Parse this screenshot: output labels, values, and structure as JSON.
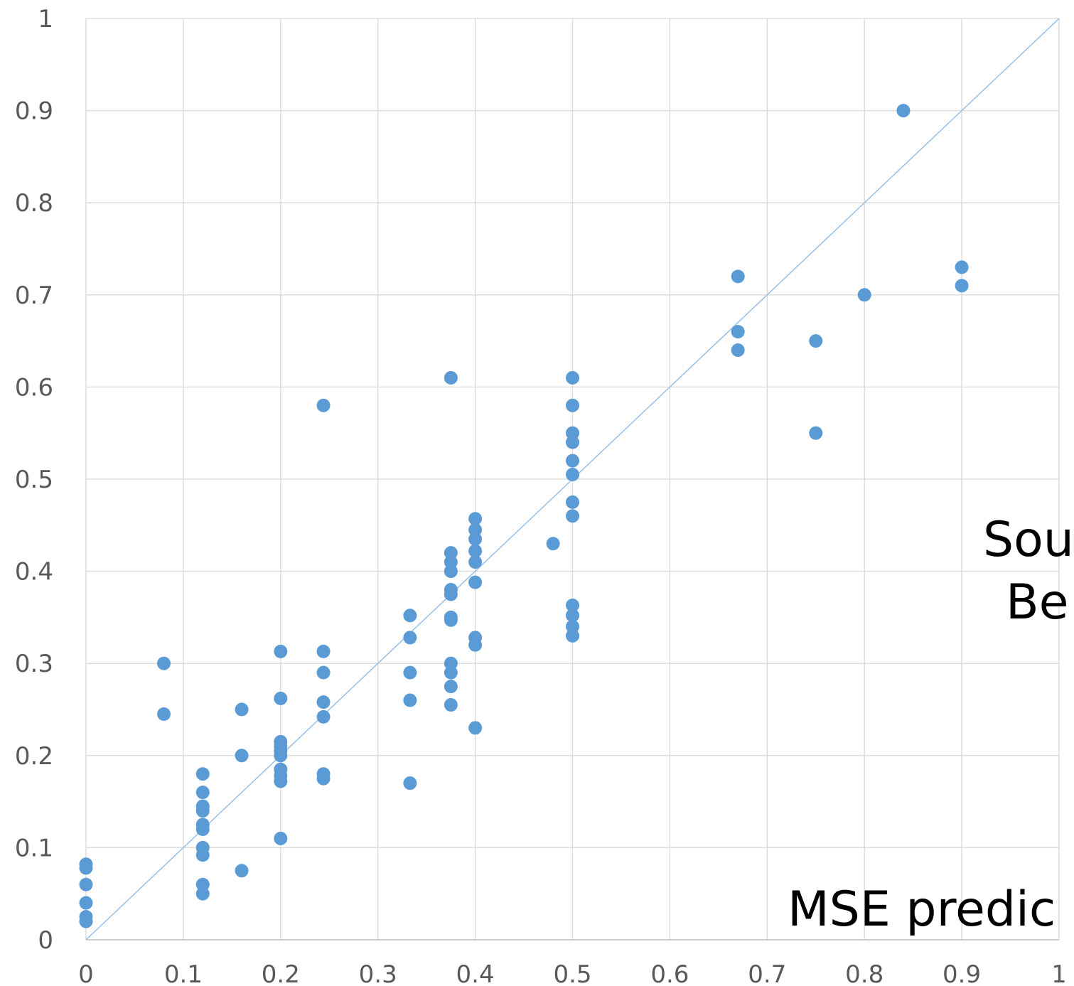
{
  "chart_data": {
    "type": "scatter",
    "xlim": [
      0,
      1
    ],
    "ylim": [
      0,
      1
    ],
    "x_ticks": [
      "0",
      "0.1",
      "0.2",
      "0.3",
      "0.4",
      "0.5",
      "0.6",
      "0.7",
      "0.8",
      "0.9",
      "1"
    ],
    "y_ticks": [
      "0",
      "0.1",
      "0.2",
      "0.3",
      "0.4",
      "0.5",
      "0.6",
      "0.7",
      "0.8",
      "0.9",
      "1"
    ],
    "grid": true,
    "reference_line": [
      [
        0,
        0
      ],
      [
        1,
        1
      ]
    ],
    "annotations": [
      "Sou",
      "Be",
      "MSE predic"
    ],
    "series": [
      {
        "color": "#5b9bd5",
        "points": [
          [
            0,
            0.082
          ],
          [
            0,
            0.078
          ],
          [
            0,
            0.06
          ],
          [
            0,
            0.04
          ],
          [
            0,
            0.025
          ],
          [
            0,
            0.02
          ],
          [
            0.08,
            0.3
          ],
          [
            0.08,
            0.245
          ],
          [
            0.12,
            0.18
          ],
          [
            0.12,
            0.16
          ],
          [
            0.12,
            0.145
          ],
          [
            0.12,
            0.14
          ],
          [
            0.12,
            0.125
          ],
          [
            0.12,
            0.12
          ],
          [
            0.12,
            0.1
          ],
          [
            0.12,
            0.092
          ],
          [
            0.12,
            0.06
          ],
          [
            0.12,
            0.05
          ],
          [
            0.16,
            0.25
          ],
          [
            0.16,
            0.2
          ],
          [
            0.16,
            0.075
          ],
          [
            0.2,
            0.313
          ],
          [
            0.2,
            0.262
          ],
          [
            0.2,
            0.215
          ],
          [
            0.2,
            0.21
          ],
          [
            0.2,
            0.205
          ],
          [
            0.2,
            0.2
          ],
          [
            0.2,
            0.185
          ],
          [
            0.2,
            0.178
          ],
          [
            0.2,
            0.172
          ],
          [
            0.2,
            0.11
          ],
          [
            0.244,
            0.58
          ],
          [
            0.244,
            0.313
          ],
          [
            0.244,
            0.29
          ],
          [
            0.244,
            0.258
          ],
          [
            0.244,
            0.242
          ],
          [
            0.244,
            0.18
          ],
          [
            0.244,
            0.175
          ],
          [
            0.333,
            0.352
          ],
          [
            0.333,
            0.328
          ],
          [
            0.333,
            0.29
          ],
          [
            0.333,
            0.26
          ],
          [
            0.333,
            0.17
          ],
          [
            0.375,
            0.61
          ],
          [
            0.375,
            0.42
          ],
          [
            0.375,
            0.41
          ],
          [
            0.375,
            0.4
          ],
          [
            0.375,
            0.38
          ],
          [
            0.375,
            0.375
          ],
          [
            0.375,
            0.35
          ],
          [
            0.375,
            0.347
          ],
          [
            0.375,
            0.3
          ],
          [
            0.375,
            0.29
          ],
          [
            0.375,
            0.275
          ],
          [
            0.375,
            0.255
          ],
          [
            0.4,
            0.457
          ],
          [
            0.4,
            0.445
          ],
          [
            0.4,
            0.435
          ],
          [
            0.4,
            0.422
          ],
          [
            0.4,
            0.41
          ],
          [
            0.4,
            0.388
          ],
          [
            0.4,
            0.328
          ],
          [
            0.4,
            0.32
          ],
          [
            0.4,
            0.23
          ],
          [
            0.48,
            0.43
          ],
          [
            0.5,
            0.61
          ],
          [
            0.5,
            0.58
          ],
          [
            0.5,
            0.55
          ],
          [
            0.5,
            0.54
          ],
          [
            0.5,
            0.52
          ],
          [
            0.5,
            0.505
          ],
          [
            0.5,
            0.475
          ],
          [
            0.5,
            0.46
          ],
          [
            0.5,
            0.363
          ],
          [
            0.5,
            0.352
          ],
          [
            0.5,
            0.34
          ],
          [
            0.5,
            0.33
          ],
          [
            0.67,
            0.72
          ],
          [
            0.67,
            0.66
          ],
          [
            0.67,
            0.64
          ],
          [
            0.75,
            0.65
          ],
          [
            0.75,
            0.55
          ],
          [
            0.8,
            0.7
          ],
          [
            0.84,
            0.9
          ],
          [
            0.9,
            0.73
          ],
          [
            0.9,
            0.71
          ]
        ]
      }
    ]
  }
}
